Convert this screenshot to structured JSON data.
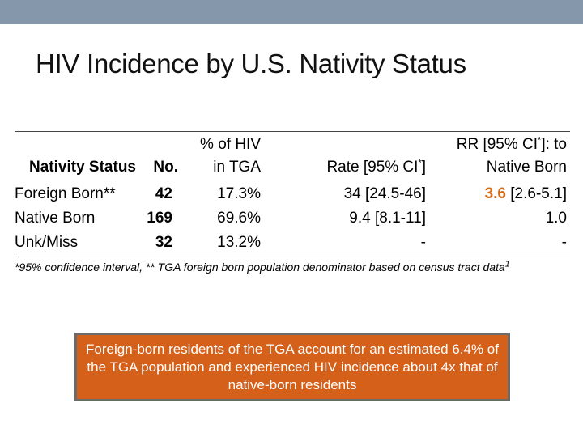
{
  "slide": {
    "title": "HIV Incidence by U.S. Nativity Status"
  },
  "table": {
    "headers": {
      "nativity": "Nativity Status",
      "no": "No.",
      "pct_line1": "% of HIV",
      "pct_line2": "in TGA",
      "rate_pre": "Rate [95% CI",
      "rate_sup": "*",
      "rate_post": "]",
      "rr_line1_pre": "RR [95% CI",
      "rr_line1_sup": "*",
      "rr_line1_post": "]: to",
      "rr_line2": "Native Born"
    },
    "rows": [
      {
        "status": "Foreign Born**",
        "no": "42",
        "pct": "17.3%",
        "rate": "34 [24.5-46]",
        "rr_value": "3.6",
        "rr_ci": " [2.6-5.1]"
      },
      {
        "status": "Native Born",
        "no": "169",
        "pct": "69.6%",
        "rate": "9.4 [8.1-11]",
        "rr_value": "",
        "rr_ci": "1.0"
      },
      {
        "status": "Unk/Miss",
        "no": "32",
        "pct": "13.2%",
        "rate": "-",
        "rr_value": "",
        "rr_ci": "-"
      }
    ]
  },
  "footnote": {
    "text": "*95% confidence interval, ** TGA foreign born population denominator based on census tract data",
    "sup": "1"
  },
  "callout": {
    "text": "Foreign-born residents of the TGA account for an estimated 6.4% of the TGA population and experienced HIV incidence about 4x that of native-born residents"
  },
  "colors": {
    "top_bar": "#8497ab",
    "accent": "#d86a14",
    "callout_bg": "#d4601a"
  }
}
